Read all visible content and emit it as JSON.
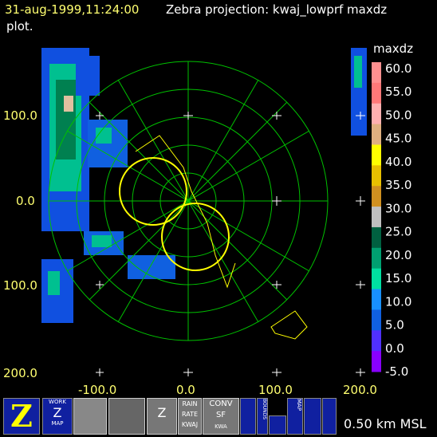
{
  "header": {
    "time": "31-aug-1999,11:24:00",
    "title": "Zebra projection: kwaj_lowprf maxdz",
    "title_cont": "plot."
  },
  "axes": {
    "y_labels": [
      "100.0",
      "0.0",
      "100.0",
      "200.0"
    ],
    "x_labels": [
      "-100.0",
      "0.0",
      "100.0",
      "200.0"
    ]
  },
  "colorbar": {
    "title": "maxdz",
    "labels": [
      "60.0",
      "55.0",
      "50.0",
      "45.0",
      "40.0",
      "35.0",
      "30.0",
      "25.0",
      "20.0",
      "15.0",
      "10.0",
      "5.0",
      "0.0",
      "-5.0"
    ]
  },
  "toolbar": {
    "icons": [
      "WORK",
      "MAP",
      "RAIN",
      "RATE",
      "KWAJ",
      "CONV",
      "SF",
      "KWA",
      "BOUNDS",
      "MAP"
    ]
  },
  "status": "0.50 km MSL"
}
